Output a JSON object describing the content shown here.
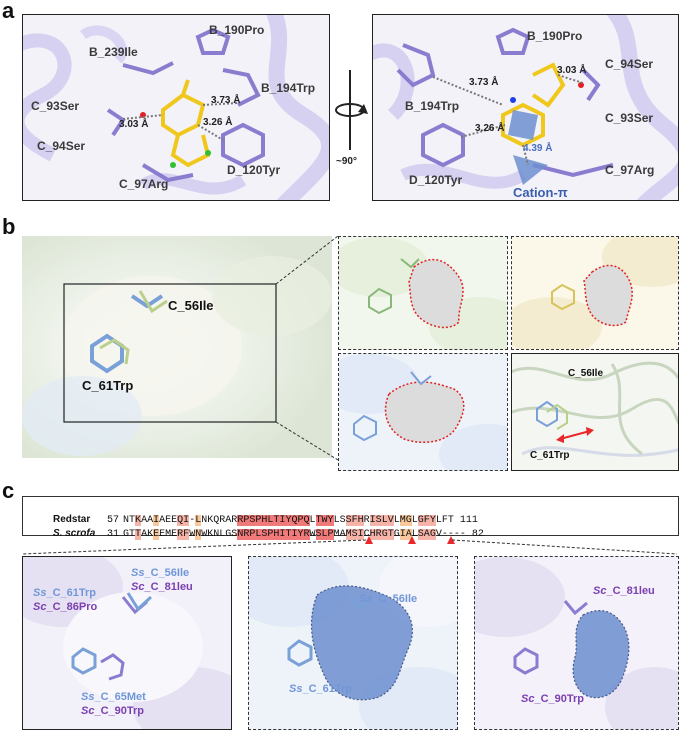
{
  "panels": {
    "a": {
      "letter": "a",
      "left_view": {
        "residues": [
          "B_239Ile",
          "B_190Pro",
          "C_93Ser",
          "B_194Trp",
          "C_94Ser",
          "D_120Tyr",
          "C_97Arg"
        ],
        "distances": [
          "3.03 Å",
          "3.73 Å",
          "3.26 Å"
        ]
      },
      "rotation_label": "~90°",
      "right_view": {
        "residues": [
          "B_190Pro",
          "C_94Ser",
          "B_194Trp",
          "C_93Ser",
          "D_120Tyr",
          "C_97Arg"
        ],
        "distances": [
          "3.73 Å",
          "3.03 Å",
          "3.26 Å",
          "4.39 Å"
        ],
        "interaction_label": "Cation-π"
      }
    },
    "b": {
      "letter": "b",
      "main_labels": [
        "C_56Ile",
        "C_61Trp"
      ],
      "inset_labels": [
        "C_56Ile",
        "C_61Trp"
      ]
    },
    "c": {
      "letter": "c",
      "alignment": {
        "rows": [
          {
            "name": "Redstar",
            "start": "57",
            "seq": "NTKAAIAEEQI-LNKQRARRPSPHLTIYQPQLTWYLSSFHRISLVLMGLGFYLFT",
            "end": "111"
          },
          {
            "name": "S. scrofa",
            "start": "31",
            "seq": "GTTAKEEMERFWNWKNLGSNRPLSPHITIYRWSLPMAMSICHRGTGIALSAGV----",
            "end": "82"
          }
        ]
      },
      "bottom_left": {
        "labels": [
          {
            "prefix": "Ss",
            "text": "_C_56Ile",
            "color": "#6f97d8"
          },
          {
            "prefix": "Sc",
            "text": "_C_81leu",
            "color": "#7a3fb0"
          },
          {
            "prefix": "Ss",
            "text": "_C_61Trp",
            "color": "#6f97d8"
          },
          {
            "prefix": "Sc",
            "text": "_C_86Pro",
            "color": "#7a3fb0"
          },
          {
            "prefix": "Ss",
            "text": "_C_65Met",
            "color": "#6f97d8"
          },
          {
            "prefix": "Sc",
            "text": "_C_90Trp",
            "color": "#7a3fb0"
          }
        ]
      },
      "bottom_mid": {
        "labels": [
          {
            "prefix": "Ss",
            "text": "_C_56Ile",
            "color": "#6f97d8"
          },
          {
            "prefix": "Ss",
            "text": "_C_61Trp",
            "color": "#6f97d8"
          }
        ]
      },
      "bottom_right": {
        "labels": [
          {
            "prefix": "Sc",
            "text": "_C_81leu",
            "color": "#7a3fb0"
          },
          {
            "prefix": "Sc",
            "text": "_C_90Trp",
            "color": "#7a3fb0"
          }
        ]
      }
    }
  },
  "colors": {
    "ribbon": "#b8b0e6",
    "residue_purple": "#8a7ccf",
    "ligand_yellow": "#f0c81c",
    "pocket_blue": "#6d8fd0",
    "pocket_gray": "#d8d8d8",
    "dotted_red": "#e02020",
    "arrow_red": "#e8282a"
  }
}
